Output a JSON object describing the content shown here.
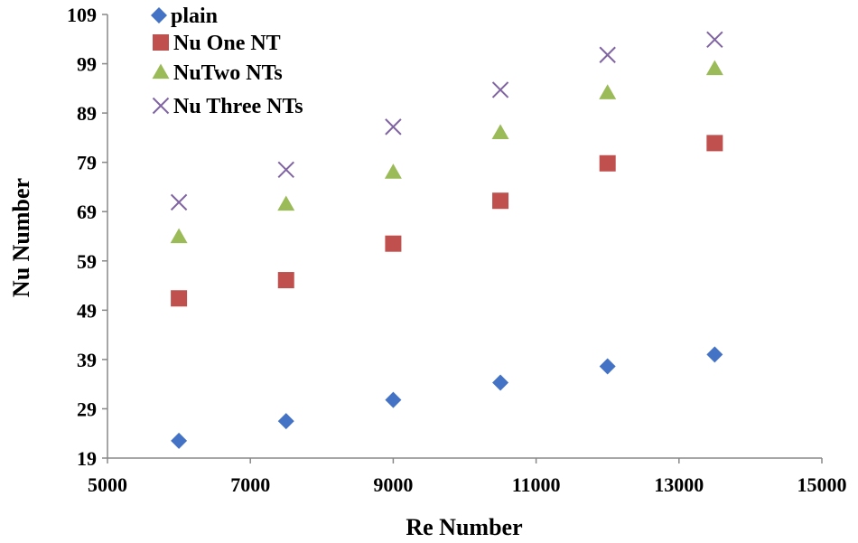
{
  "chart_data": {
    "type": "scatter",
    "title": "",
    "xlabel": "Re Number",
    "ylabel": "Nu Number",
    "xlim": [
      5000,
      15000
    ],
    "ylim": [
      19,
      109
    ],
    "xticks": [
      5000,
      7000,
      9000,
      11000,
      13000,
      15000
    ],
    "yticks": [
      19,
      29,
      39,
      49,
      59,
      69,
      79,
      89,
      99,
      109
    ],
    "grid": false,
    "legend_position": "top-left",
    "series": [
      {
        "name": "plain",
        "marker": "diamond",
        "color": "#4472C4",
        "x": [
          6000,
          7500,
          9000,
          10500,
          12000,
          13500
        ],
        "y": [
          22.5,
          26.5,
          30.8,
          34.3,
          37.6,
          40.0
        ]
      },
      {
        "name": "Nu One NT",
        "marker": "square",
        "color": "#C0504D",
        "x": [
          6000,
          7500,
          9000,
          10500,
          12000,
          13500
        ],
        "y": [
          51.4,
          55.1,
          62.5,
          71.2,
          78.8,
          82.9
        ]
      },
      {
        "name": "NuTwo NTs",
        "marker": "triangle",
        "color": "#9BBB59",
        "x": [
          6000,
          7500,
          9000,
          10500,
          12000,
          13500
        ],
        "y": [
          63.9,
          70.5,
          77.0,
          85.0,
          93.1,
          98.0
        ]
      },
      {
        "name": "Nu Three NTs",
        "marker": "x",
        "color": "#8064A2",
        "x": [
          6000,
          7500,
          9000,
          10500,
          12000,
          13500
        ],
        "y": [
          70.9,
          77.5,
          86.2,
          93.7,
          100.8,
          103.9
        ]
      }
    ]
  }
}
